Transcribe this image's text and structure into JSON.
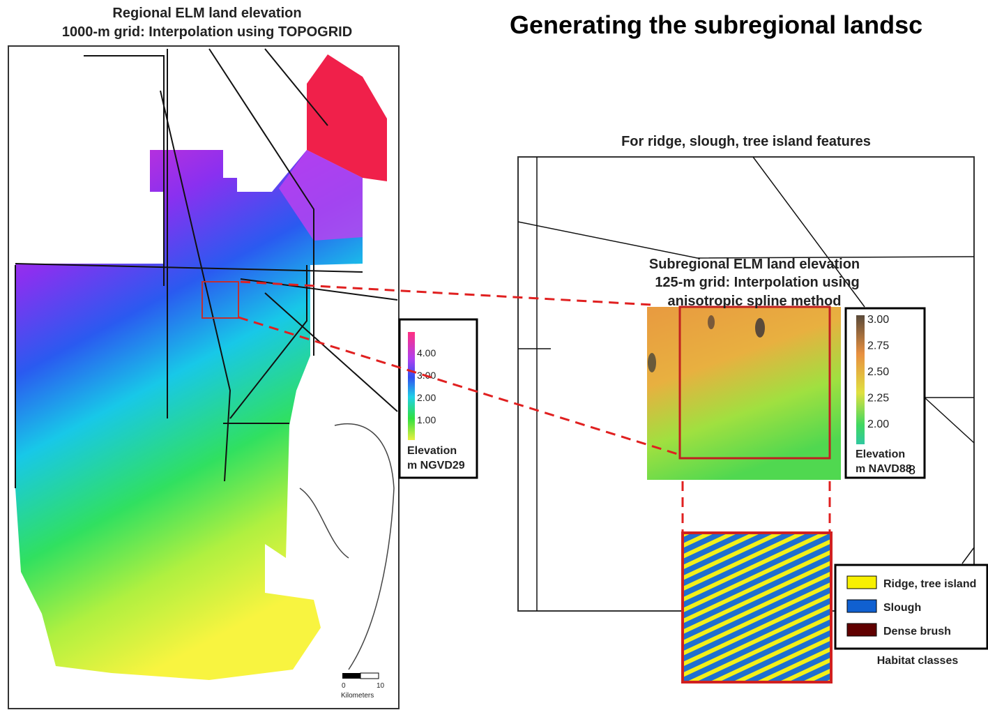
{
  "left_map": {
    "title_line1": "Regional ELM land elevation",
    "title_line2": "1000-m grid: Interpolation using TOPOGRID",
    "legend": {
      "ticks": [
        "4.00",
        "3.00",
        "2.00",
        "1.00"
      ],
      "label_line1": "Elevation",
      "label_line2": "m NGVD29"
    },
    "scale": {
      "start": "0",
      "end": "10",
      "unit": "Kilometers"
    }
  },
  "header": {
    "title": "Generating the subregional landsc"
  },
  "right_panel": {
    "title": "For ridge, slough, tree island features",
    "subregion_title_line1": "Subregional ELM land elevation",
    "subregion_title_line2": "125-m grid: Interpolation using",
    "subregion_title_line3": "anisotropic spline method",
    "legend": {
      "ticks": [
        "3.00",
        "2.75",
        "2.50",
        "2.25",
        "2.00"
      ],
      "label_line1": "Elevation",
      "label_line2": "m NAVD88"
    },
    "page_number": "8",
    "habitat": {
      "classes": [
        "Ridge, tree island",
        "Slough",
        "Dense brush"
      ],
      "title": "Habitat classes"
    }
  }
}
